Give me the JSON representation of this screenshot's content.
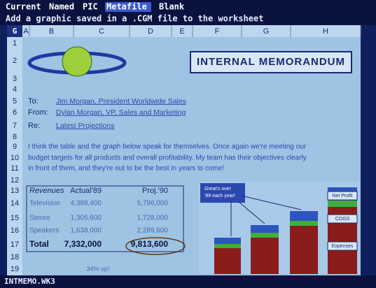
{
  "menu": {
    "items": [
      "Current",
      "Named",
      "PIC",
      "Metafile",
      "Blank"
    ],
    "prompt": "Add a graphic saved in a .CGM file to the worksheet"
  },
  "sheet": {
    "corner": "G",
    "columns": [
      "A",
      "B",
      "C",
      "D",
      "E",
      "F",
      "G",
      "H"
    ],
    "rows": [
      "1",
      "2",
      "3",
      "4",
      "5",
      "6",
      "7",
      "8",
      "9",
      "10",
      "11",
      "12",
      "13",
      "14",
      "15",
      "16",
      "17",
      "18",
      "19"
    ]
  },
  "memo": {
    "title": "INTERNAL MEMORANDUM",
    "header": [
      {
        "label": "To:",
        "value": "Jim Morgan, President Worldwide Sales"
      },
      {
        "label": "From:",
        "value": "Dylan Morgan, VP, Sales and Marketing"
      },
      {
        "label": "Re:",
        "value": "Latest Projections"
      }
    ],
    "body": [
      "I think the table and the graph below speak for themselves.  Once again we're meeting our",
      "budget targets for all products and overall profitability.  My team has their objectives clearly",
      "in front of them, and they're out to be the best in years to come!"
    ]
  },
  "table": {
    "header": [
      "Revenues",
      "Actual'89",
      "Proj.'90"
    ],
    "rows": [
      [
        "Television",
        "4,388,400",
        "5,796,000"
      ],
      [
        "Stereo",
        "1,305,600",
        "1,728,000"
      ],
      [
        "Speakers",
        "1,638,000",
        "2,289,600"
      ],
      [
        "Total",
        "7,332,000",
        "9,813,600"
      ]
    ],
    "note": "34% up!"
  },
  "graph": {
    "callout": [
      "Great's over",
      "'89 each year!"
    ],
    "labels": [
      "Net Profit",
      "COGS",
      "Expenses"
    ]
  },
  "status": {
    "file": "INTMEMO.WK3"
  }
}
